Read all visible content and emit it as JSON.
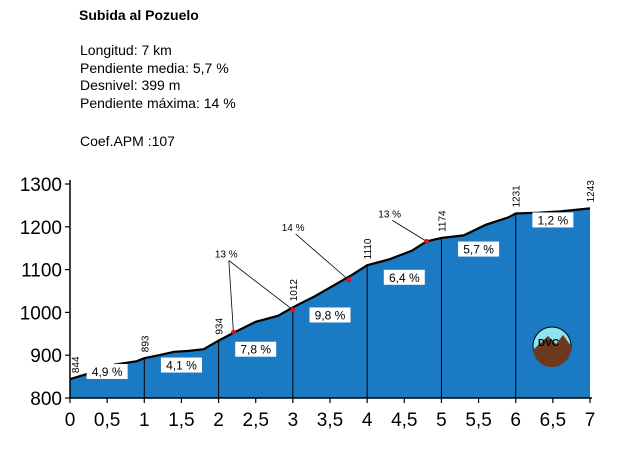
{
  "title": "Subida al Pozuelo",
  "info": {
    "length": "Longitud: 7 km",
    "avg_grade": "Pendiente media: 5,7 %",
    "gain": "Desnivel: 399 m",
    "max_grade": "Pendiente máxima: 14 %",
    "coef": "Coef.APM :107"
  },
  "logo_text": "DVC",
  "colors": {
    "fill": "#1a7ac4",
    "line": "#000000",
    "marker": "#e01010",
    "logo_sky": "#8ee3f0",
    "logo_mountain": "#6b3a1e"
  },
  "chart_data": {
    "type": "area",
    "x_ticks": [
      "0",
      "0,5",
      "1",
      "1,5",
      "2",
      "2,5",
      "3",
      "3,5",
      "4",
      "4,5",
      "5",
      "5,5",
      "6",
      "6,5",
      "7"
    ],
    "y_ticks": [
      "800",
      "900",
      "1000",
      "1100",
      "1200",
      "1300"
    ],
    "xlim": [
      0,
      7
    ],
    "ylim": [
      800,
      1300
    ],
    "profile": [
      [
        0,
        844
      ],
      [
        0.3,
        860
      ],
      [
        0.6,
        878
      ],
      [
        0.9,
        886
      ],
      [
        1,
        893
      ],
      [
        1.2,
        900
      ],
      [
        1.4,
        908
      ],
      [
        1.6,
        910
      ],
      [
        1.8,
        914
      ],
      [
        2,
        934
      ],
      [
        2.2,
        952
      ],
      [
        2.5,
        978
      ],
      [
        2.8,
        992
      ],
      [
        3,
        1012
      ],
      [
        3.3,
        1038
      ],
      [
        3.6,
        1068
      ],
      [
        3.8,
        1088
      ],
      [
        4,
        1110
      ],
      [
        4.3,
        1124
      ],
      [
        4.6,
        1144
      ],
      [
        4.8,
        1166
      ],
      [
        5,
        1174
      ],
      [
        5.3,
        1180
      ],
      [
        5.6,
        1205
      ],
      [
        5.9,
        1222
      ],
      [
        6,
        1231
      ],
      [
        6.3,
        1233
      ],
      [
        6.6,
        1236
      ],
      [
        7,
        1243
      ]
    ],
    "km_markers": [
      {
        "x": 0,
        "elev": "844"
      },
      {
        "x": 1,
        "elev": "893"
      },
      {
        "x": 2,
        "elev": "934"
      },
      {
        "x": 3,
        "elev": "1012"
      },
      {
        "x": 4,
        "elev": "1110"
      },
      {
        "x": 5,
        "elev": "1174"
      },
      {
        "x": 6,
        "elev": "1231"
      },
      {
        "x": 7,
        "elev": "1243"
      }
    ],
    "segment_grades": [
      "4,9 %",
      "4,1 %",
      "7,8 %",
      "9,8 %",
      "6,4 %",
      "5,7 %",
      "1,2 %"
    ],
    "segment_label_y": [
      862,
      877,
      914,
      994,
      1082,
      1148,
      1216
    ],
    "annotations": [
      {
        "label": "13 %",
        "label_x": 1.95,
        "label_y": 1128,
        "points": [
          [
            2.2,
            954
          ],
          [
            3.0,
            1006
          ]
        ]
      },
      {
        "label": "14 %",
        "label_x": 2.85,
        "label_y": 1190,
        "points": [
          [
            3.75,
            1076
          ]
        ]
      },
      {
        "label": "13 %",
        "label_x": 4.15,
        "label_y": 1222,
        "points": [
          [
            4.8,
            1166
          ]
        ]
      }
    ]
  }
}
